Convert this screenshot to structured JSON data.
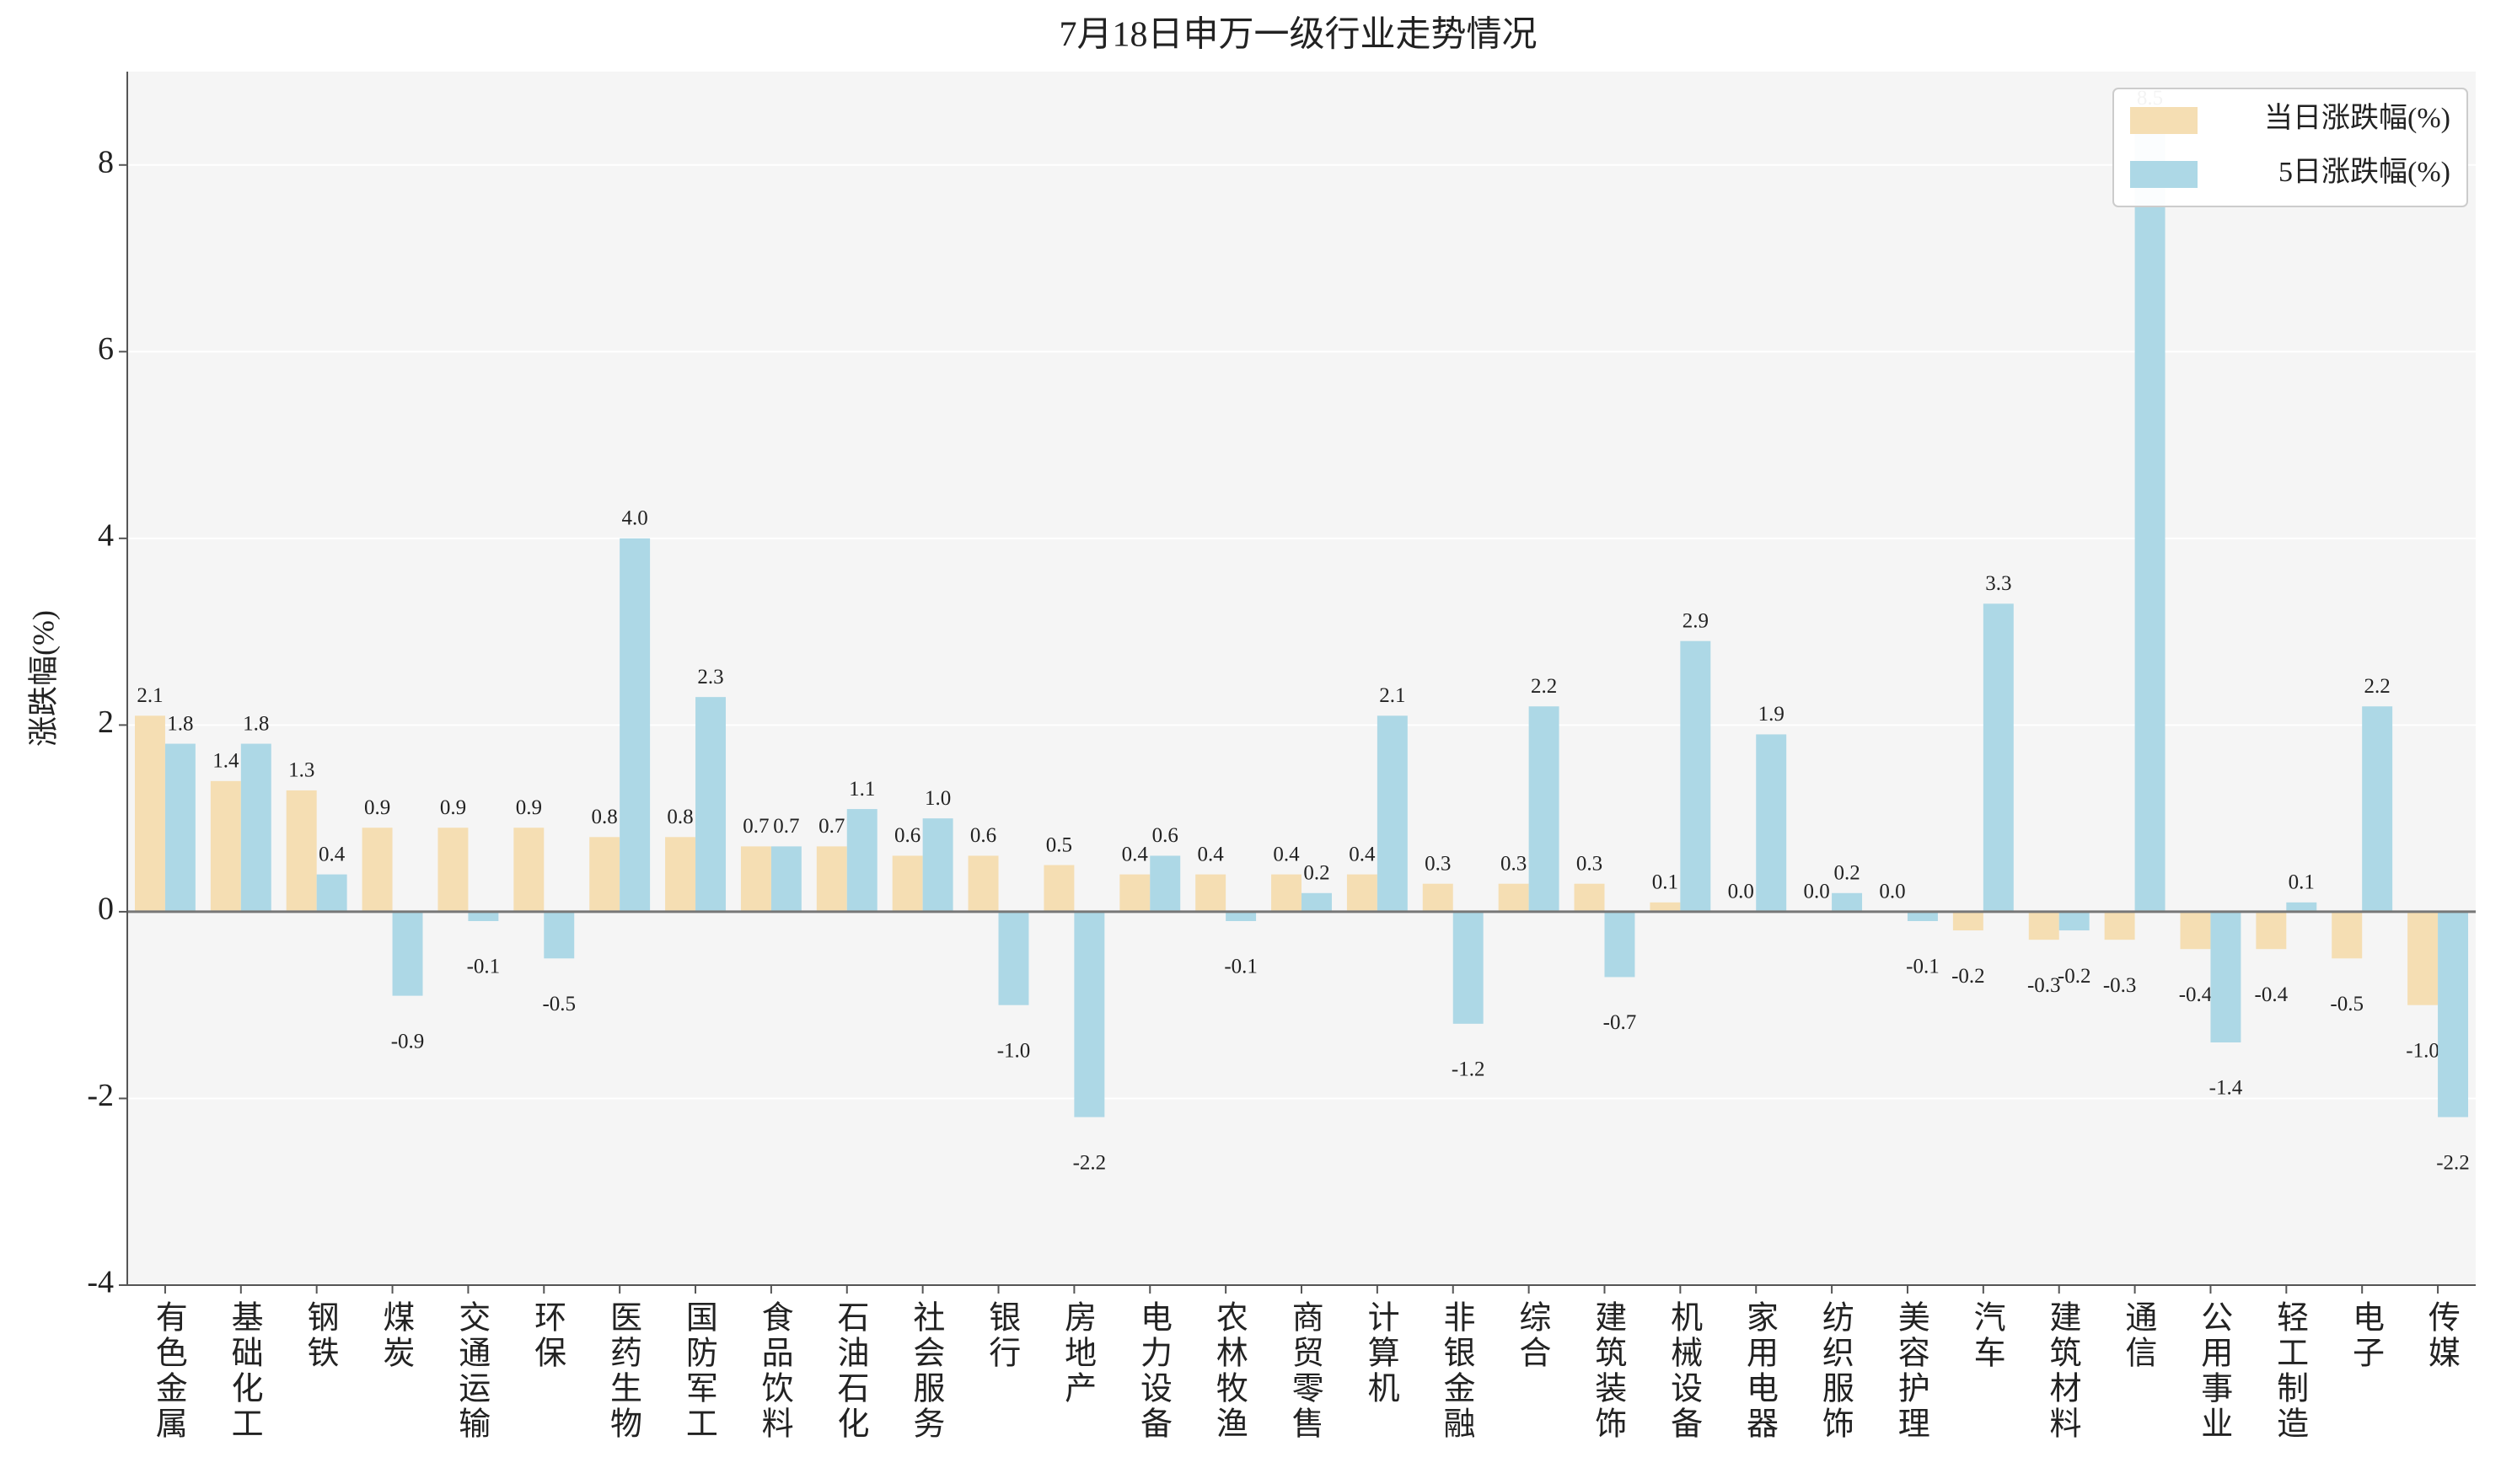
{
  "chart_data": {
    "type": "bar",
    "title": "7月18日申万一级行业走势情况",
    "y_label": "涨跌幅(%)",
    "categories": [
      "有色金属",
      "基础化工",
      "钢铁",
      "煤炭",
      "交通运输",
      "环保",
      "医药生物",
      "国防军工",
      "食品饮料",
      "石油石化",
      "社会服务",
      "银行",
      "房地产",
      "电力设备",
      "农林牧渔",
      "商贸零售",
      "计算机",
      "非银金融",
      "综合",
      "建筑装饰",
      "机械设备",
      "家用电器",
      "纺织服饰",
      "美容护理",
      "汽车",
      "建筑材料",
      "通信",
      "公用事业",
      "轻工制造",
      "电子",
      "传媒"
    ],
    "series": [
      {
        "name": "当日涨跌幅(%)",
        "color": "#f5deb3",
        "values": [
          2.1,
          1.4,
          1.3,
          0.9,
          0.9,
          0.9,
          0.8,
          0.8,
          0.7,
          0.7,
          0.6,
          0.6,
          0.5,
          0.4,
          0.4,
          0.4,
          0.4,
          0.3,
          0.3,
          0.3,
          0.1,
          0.0,
          0.0,
          0.0,
          -0.2,
          -0.3,
          -0.3,
          -0.4,
          -0.4,
          -0.5,
          -1.0
        ],
        "value_labels": [
          "2.1",
          "1.4",
          "1.3",
          "0.9",
          "0.9",
          "0.9",
          "0.8",
          "0.8",
          "0.7",
          "0.7",
          "0.6",
          "0.6",
          "0.5",
          "0.4",
          "0.4",
          "0.4",
          "0.4",
          "0.3",
          "0.3",
          "0.3",
          "0.1",
          "0.0",
          "0.0",
          "0.0",
          "-0.2",
          "-0.3",
          "-0.3",
          "-0.4",
          "-0.4",
          "-0.5",
          "-1.0"
        ]
      },
      {
        "name": "5日涨跌幅(%)",
        "color": "#add8e6",
        "values": [
          1.8,
          1.8,
          0.4,
          -0.9,
          -0.1,
          -0.5,
          4.0,
          2.3,
          0.7,
          1.1,
          1.0,
          -1.0,
          -2.2,
          0.6,
          -0.1,
          0.2,
          2.1,
          -1.2,
          2.2,
          -0.7,
          2.9,
          1.9,
          0.2,
          -0.1,
          3.3,
          -0.2,
          8.5,
          -1.4,
          0.1,
          2.2,
          -2.2
        ],
        "value_labels": [
          "1.8",
          "1.8",
          "0.4",
          "-0.9",
          "-0.1",
          "-0.5",
          "4.0",
          "2.3",
          "0.7",
          "1.1",
          "1.0",
          "-1.0",
          "-2.2",
          "0.6",
          "-0.1",
          "0.2",
          "2.1",
          "-1.2",
          "2.2",
          "-0.7",
          "2.9",
          "1.9",
          "0.2",
          "-0.1",
          "3.3",
          "-0.2",
          "8.5",
          "-1.4",
          "0.1",
          "2.2",
          "-2.2"
        ]
      }
    ],
    "ylim": [
      -4,
      9
    ],
    "yticks": [
      -4,
      -2,
      0,
      2,
      4,
      6,
      8
    ],
    "grid": true,
    "legend": "upper right"
  }
}
